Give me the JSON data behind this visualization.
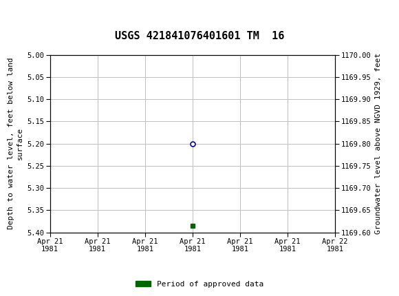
{
  "title": "USGS 421841076401601 TM  16",
  "left_ylabel": "Depth to water level, feet below land\nsurface",
  "right_ylabel": "Groundwater level above NGVD 1929, feet",
  "ylim_left": [
    5.4,
    5.0
  ],
  "ylim_right": [
    1169.6,
    1170.0
  ],
  "xlim": [
    0,
    6
  ],
  "x_ticks": [
    0,
    1,
    2,
    3,
    4,
    5,
    6
  ],
  "x_tick_labels": [
    "Apr 21\n1981",
    "Apr 21\n1981",
    "Apr 21\n1981",
    "Apr 21\n1981",
    "Apr 21\n1981",
    "Apr 21\n1981",
    "Apr 22\n1981"
  ],
  "left_yticks": [
    5.0,
    5.05,
    5.1,
    5.15,
    5.2,
    5.25,
    5.3,
    5.35,
    5.4
  ],
  "right_yticks": [
    1170.0,
    1169.95,
    1169.9,
    1169.85,
    1169.8,
    1169.75,
    1169.7,
    1169.65,
    1169.6
  ],
  "data_point_x": 3.0,
  "data_point_y": 5.2,
  "data_point_color": "#0000bb",
  "data_point_markersize": 5,
  "green_square_x": 3.0,
  "green_square_y": 5.385,
  "green_square_color": "#006600",
  "green_square_size": 4,
  "legend_label": "Period of approved data",
  "legend_color": "#006600",
  "header_color": "#1a6b3c",
  "grid_color": "#c0c0c0",
  "background_color": "#ffffff",
  "title_fontsize": 11,
  "axis_label_fontsize": 8,
  "tick_fontsize": 7.5,
  "font_family": "DejaVu Sans Mono"
}
